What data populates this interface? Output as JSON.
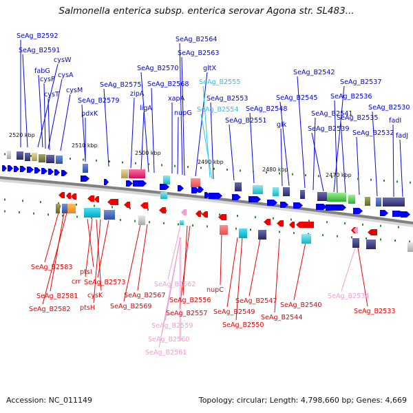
{
  "title": "Salmonella enterica subsp. enterica serovar Agona str. SL483...",
  "footer": {
    "accession": "Accession: NC_011149",
    "summary": "Topology: circular; Length: 4,798,660 bp; Genes: 4,669"
  },
  "colors": {
    "forward": "#0000ee",
    "reverse": "#ee0000",
    "forward_highlight": "#22c8e8",
    "reverse_highlight": "#f0a0d0",
    "backbone": "#808080",
    "tick": "#2e8b2e"
  },
  "scale_labels": [
    "2520 kbp",
    "2510 kbp",
    "2500 kbp",
    "2490 kbp",
    "2480 kbp",
    "2470 kbp"
  ],
  "top_labels": [
    "SeAg_B2592",
    "SeAg_B2591",
    "cysW",
    "fabG",
    "cysA",
    "cysP",
    "cysT",
    "cysM",
    "SeAg_B2579",
    "pdxK",
    "SeAg_B2575",
    "zipA",
    "ligA",
    "SeAg_B2570",
    "SeAg_B2568",
    "xapA",
    "nupG",
    "SeAg_B2564",
    "SeAg_B2563",
    "gltX",
    "SeAg_B2555",
    "SeAg_B2554",
    "SeAg_B2553",
    "SeAg_B2551",
    "SeAg_B2548",
    "glk",
    "SeAg_B2545",
    "SeAg_B2542",
    "SeAg_B2541",
    "SeAg_B2539",
    "SeAg_B2537",
    "SeAg_B2536",
    "SeAg_B2535",
    "SeAg_B2532",
    "SeAg_B2530",
    "fadI",
    "fadJ"
  ],
  "bottom_labels": [
    "SeAg_B2583",
    "SeAg_B2581",
    "SeAg_B2582",
    "ptsI",
    "crr",
    "cysK",
    "ptsH",
    "SeAg_B2573",
    "SeAg_B2569",
    "SeAg_B2567",
    "SeAg_B2562",
    "SeAg_B2556",
    "SeAg_B2557",
    "SeAg_B2559",
    "SeAg_B2560",
    "SeAg_B2561",
    "nupC",
    "SeAg_B2549",
    "SeAg_B2550",
    "SeAg_B2547",
    "SeAg_B2544",
    "SeAg_B2540",
    "SeAg_B2534",
    "SeAg_B2533"
  ]
}
